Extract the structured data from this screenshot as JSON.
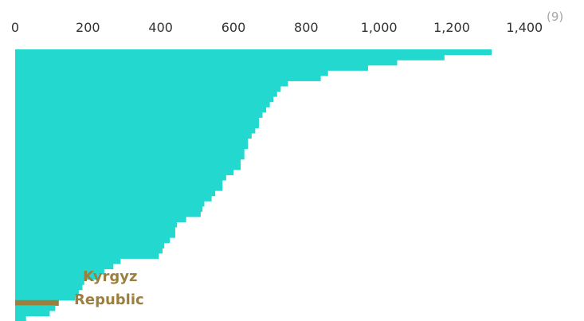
{
  "note": "(9)",
  "highlight_label_lines": [
    "Kyrgyz",
    "Republic"
  ],
  "colors": {
    "bar": "#22d8cf",
    "highlight": "#9c7f3e"
  },
  "chart_data": {
    "type": "bar",
    "orientation": "horizontal",
    "x_ticks": [
      "0",
      "200",
      "400",
      "600",
      "800",
      "1,000",
      "1,200",
      "1,400"
    ],
    "xlim": [
      0,
      1400
    ],
    "grid": false,
    "highlight_category": "Kyrgyz Republic",
    "values": [
      1310,
      1180,
      1050,
      970,
      860,
      840,
      750,
      730,
      720,
      710,
      700,
      690,
      680,
      670,
      670,
      660,
      650,
      640,
      640,
      630,
      630,
      620,
      620,
      600,
      580,
      570,
      570,
      550,
      540,
      520,
      515,
      510,
      470,
      445,
      440,
      440,
      425,
      410,
      405,
      395,
      290,
      270,
      245,
      230,
      190,
      185,
      175,
      165,
      120,
      110,
      95,
      30
    ],
    "highlight_index": 48
  }
}
